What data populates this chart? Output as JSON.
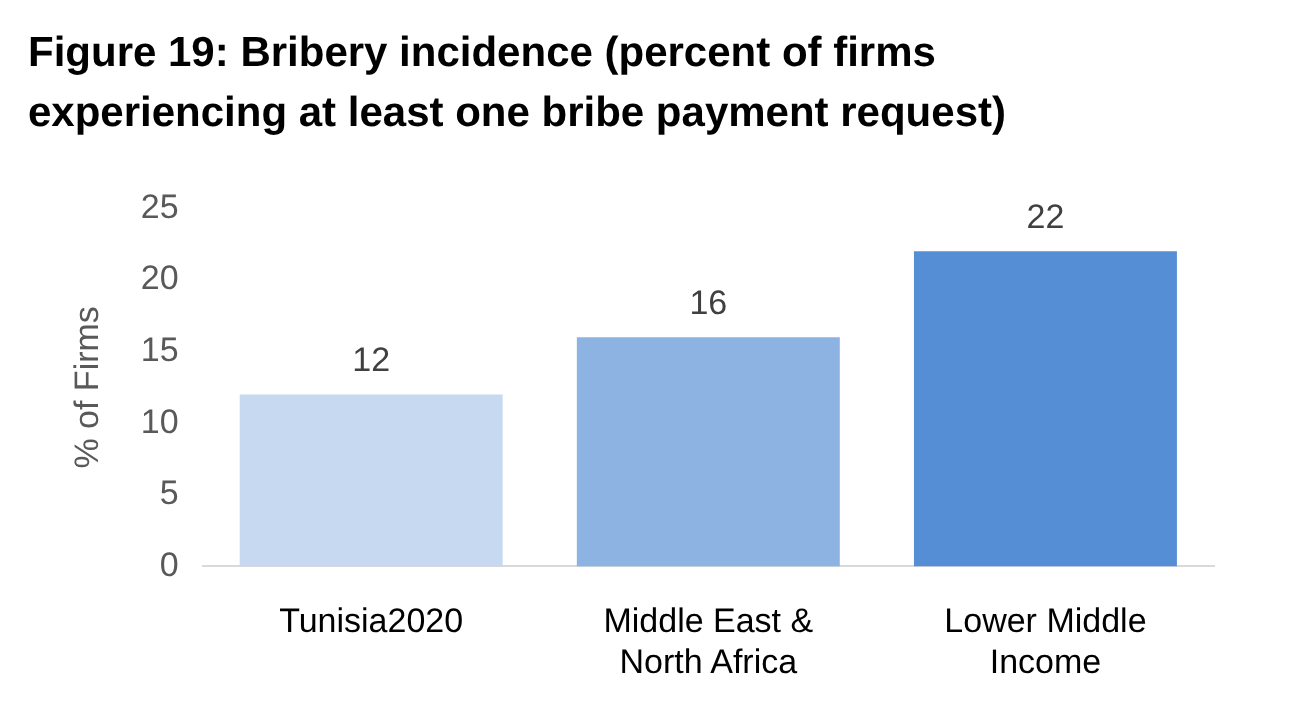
{
  "chart_data": {
    "type": "bar",
    "title": "Figure 19: Bribery incidence (percent of firms experiencing at least one bribe payment request)",
    "ylabel": "% of Firms",
    "categories": [
      "Tunisia2020",
      "Middle East & North Africa",
      "Lower Middle Income"
    ],
    "values": [
      12,
      16,
      22
    ],
    "colors": [
      "#c6d9f1",
      "#8db3e2",
      "#558ed5"
    ],
    "ylim": [
      0,
      25
    ],
    "yticks": [
      0,
      5,
      10,
      15,
      20,
      25
    ],
    "grid": false,
    "data_labels": true,
    "legend": false
  }
}
